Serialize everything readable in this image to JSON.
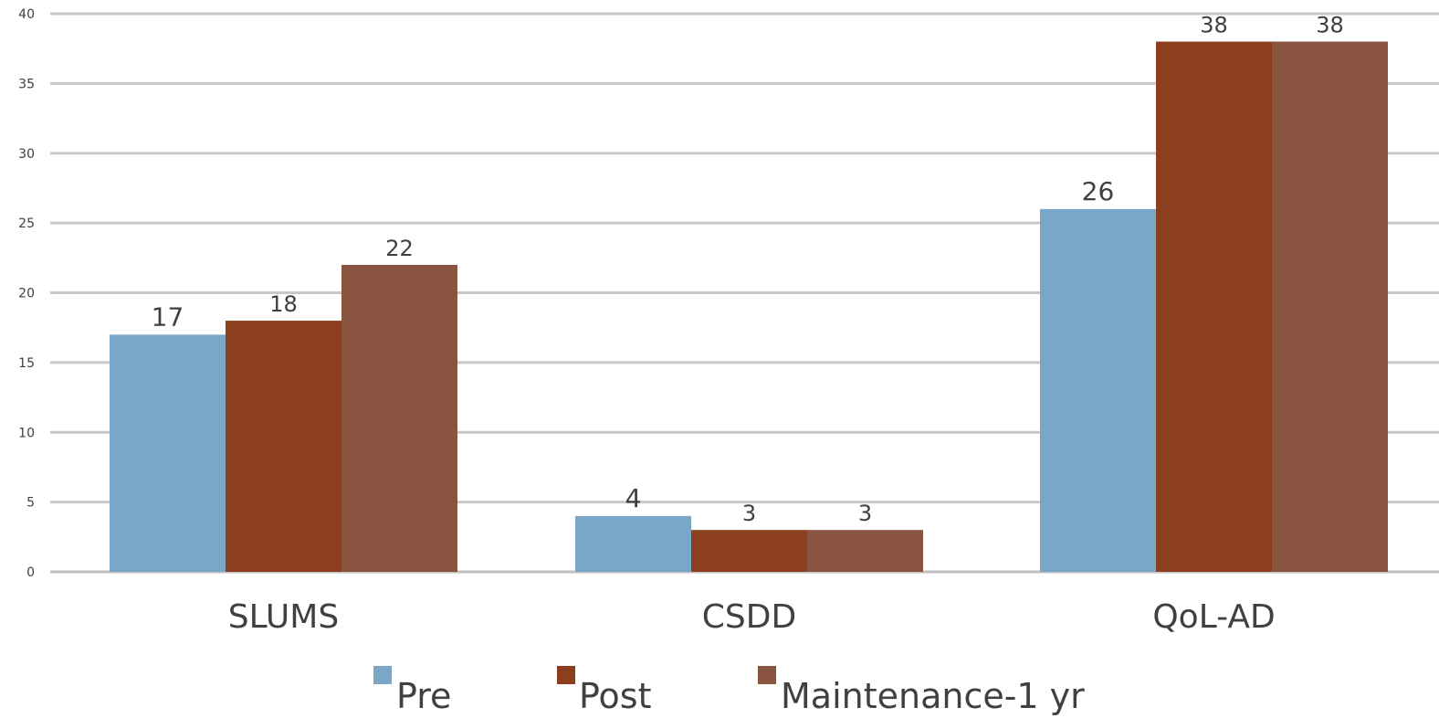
{
  "chart_data": {
    "type": "bar",
    "categories": [
      "SLUMS",
      "CSDD",
      "QoL-AD"
    ],
    "series": [
      {
        "name": "Pre",
        "color": "#7aa6c8",
        "values": [
          17,
          4,
          26
        ]
      },
      {
        "name": "Post",
        "color": "#8c3f1f",
        "values": [
          18,
          3,
          38
        ]
      },
      {
        "name": "Maintenance-1 yr",
        "color": "#8a5540",
        "values": [
          22,
          3,
          38
        ]
      }
    ],
    "ylim": [
      0,
      40
    ],
    "yticks": [
      0,
      5,
      10,
      15,
      20,
      25,
      30,
      35,
      40
    ],
    "grid": true,
    "legend_position": "bottom",
    "data_labels": true
  }
}
